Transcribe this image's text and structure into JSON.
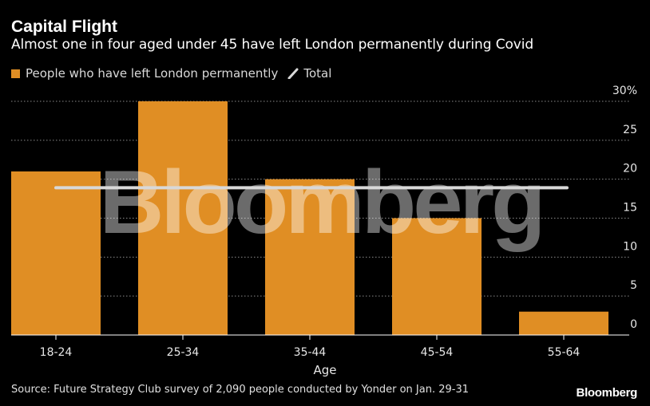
{
  "header": {
    "title": "Capital Flight",
    "subtitle": "Almost one in four aged under 45 have left London permanently during Covid"
  },
  "legend": {
    "bar_label": "People who have left London permanently",
    "line_label": "Total"
  },
  "footer": {
    "source": "Source: Future Strategy Club survey of 2,090 people conducted by Yonder on Jan. 29-31",
    "brand": "Bloomberg"
  },
  "watermark": "Bloomberg",
  "colors": {
    "bar": "#e08e24",
    "total_line": "#d8d8d8",
    "grid": "#8a8a8a",
    "background": "#000000"
  },
  "chart_data": {
    "type": "bar",
    "categories": [
      "18-24",
      "25-34",
      "35-44",
      "45-54",
      "55-64"
    ],
    "series": [
      {
        "name": "People who have left London permanently",
        "values": [
          21,
          30,
          20,
          15,
          3
        ]
      }
    ],
    "reference_lines": [
      {
        "name": "Total",
        "value": 19
      }
    ],
    "xlabel": "Age",
    "ylabel": "",
    "ylim": [
      0,
      30
    ],
    "yticks": [
      {
        "value": 30,
        "label": "30%"
      },
      {
        "value": 25,
        "label": "25"
      },
      {
        "value": 20,
        "label": "20"
      },
      {
        "value": 15,
        "label": "15"
      },
      {
        "value": 10,
        "label": "10"
      },
      {
        "value": 5,
        "label": "5"
      },
      {
        "value": 0,
        "label": "0"
      }
    ],
    "grid": true,
    "legend_position": "top-left"
  }
}
